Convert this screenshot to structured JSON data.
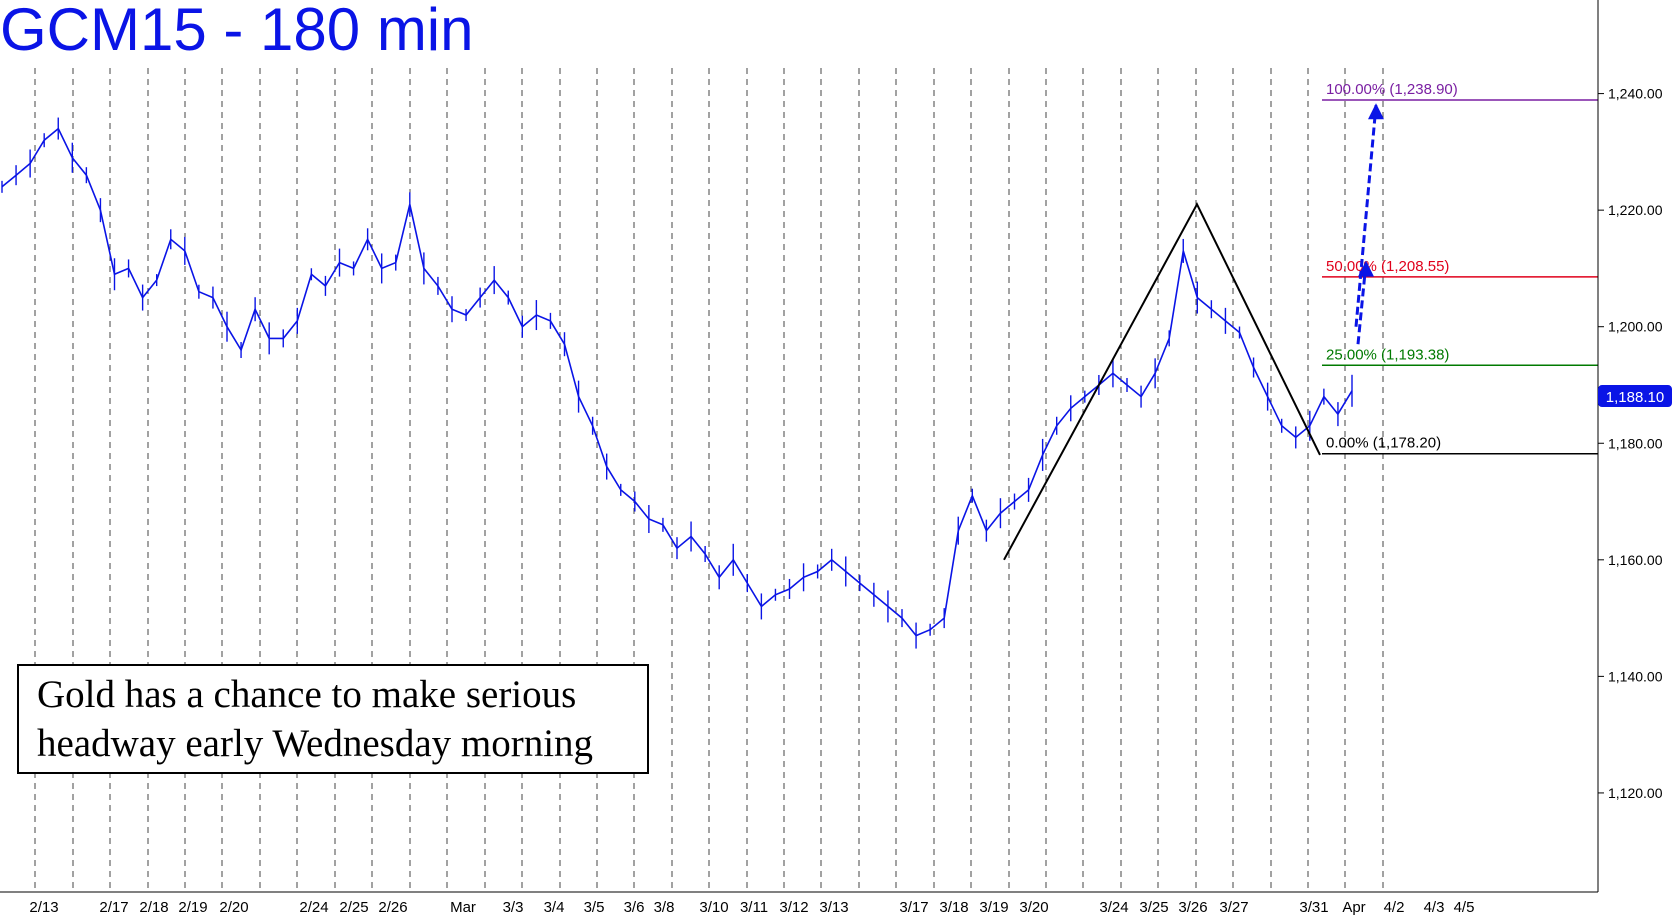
{
  "chart_data": {
    "type": "line",
    "title": "GCM15 - 180 min",
    "xlabel": "",
    "ylabel": "",
    "ylim": [
      1103,
      1254
    ],
    "y_ticks": [
      "1,120.00",
      "1,140.00",
      "1,160.00",
      "1,180.00",
      "1,200.00",
      "1,220.00",
      "1,240.00"
    ],
    "y_tick_values": [
      1120,
      1140,
      1160,
      1180,
      1200,
      1220,
      1240
    ],
    "x_tick_labels": [
      "2/13",
      "2/17",
      "2/18",
      "2/19",
      "2/20",
      "2/24",
      "2/25",
      "2/26",
      "Mar",
      "3/3",
      "3/4",
      "3/5",
      "3/6",
      "3/8",
      "3/10",
      "3/11",
      "3/12",
      "3/13",
      "3/17",
      "3/18",
      "3/19",
      "3/20",
      "3/24",
      "3/25",
      "3/26",
      "3/27",
      "3/31",
      "Apr",
      "4/2",
      "4/3",
      "4/5"
    ],
    "grid": "vertical dashed",
    "last_price": {
      "value": 1188.1,
      "label": "1,188.10",
      "color": "#0a14e6"
    },
    "price_series": {
      "color": "#0a14e6",
      "x_labels": [
        "2/13",
        "2/17",
        "2/18",
        "2/19",
        "2/20",
        "2/24",
        "2/25",
        "2/26",
        "Mar",
        "3/3",
        "3/4",
        "3/5",
        "3/6",
        "3/8",
        "3/10",
        "3/11",
        "3/12",
        "3/13",
        "3/17",
        "3/18",
        "3/19",
        "3/20",
        "3/24",
        "3/25",
        "3/26",
        "3/27",
        "3/31",
        "Apr"
      ],
      "values": [
        1224,
        1226,
        1228,
        1232,
        1234,
        1229,
        1226,
        1220,
        1209,
        1210,
        1205,
        1208,
        1215,
        1213,
        1206,
        1205,
        1200,
        1196,
        1203,
        1198,
        1198,
        1201,
        1209,
        1207,
        1211,
        1210,
        1215,
        1210,
        1211,
        1221,
        1210,
        1207,
        1203,
        1202,
        1205,
        1208,
        1205,
        1200,
        1202,
        1201,
        1197,
        1188,
        1183,
        1176,
        1172,
        1170,
        1167,
        1166,
        1162,
        1164,
        1161,
        1157,
        1160,
        1156,
        1152,
        1154,
        1155,
        1157,
        1158,
        1160,
        1158,
        1156,
        1154,
        1152,
        1150,
        1147,
        1148,
        1150,
        1165,
        1171,
        1165,
        1168,
        1170,
        1172,
        1178,
        1183,
        1186,
        1188,
        1190,
        1192,
        1190,
        1188,
        1192,
        1198,
        1213,
        1205,
        1203,
        1201,
        1199,
        1193,
        1188,
        1183,
        1181,
        1183,
        1188,
        1185,
        1189
      ]
    },
    "fibonacci_levels": [
      {
        "label": "100.00% (1,238.90)",
        "value": 1238.9,
        "color": "#7a1fa2"
      },
      {
        "label": "50.00% (1,208.55)",
        "value": 1208.55,
        "color": "#e0001b"
      },
      {
        "label": "25.00% (1,193.38)",
        "value": 1193.38,
        "color": "#007a00"
      },
      {
        "label": "0.00% (1,178.20)",
        "value": 1178.2,
        "color": "#000000"
      }
    ],
    "pattern_line": {
      "color": "#000000",
      "points": [
        {
          "x": "3/19",
          "y": 1160
        },
        {
          "x": "3/26",
          "y": 1221
        },
        {
          "x": "3/31",
          "y": 1178
        }
      ]
    },
    "projection_arrow": {
      "color": "#0a14e6",
      "style": "dashed",
      "points": [
        {
          "x": "Apr",
          "y": 1197
        },
        {
          "x": "Apr",
          "y": 1211
        },
        {
          "x": "Apr",
          "y": 1238
        }
      ]
    }
  },
  "annotation": {
    "line1": "Gold has a chance to make serious",
    "line2": "headway early Wednesday morning"
  }
}
